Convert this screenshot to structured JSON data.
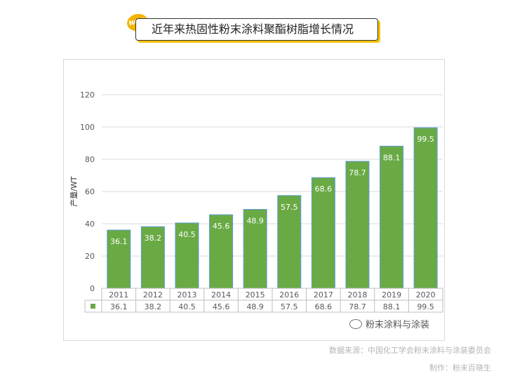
{
  "title": {
    "badge": "NO.3",
    "text": "近年来热固性粉末涂料聚酯树脂增长情况"
  },
  "chart_data": {
    "type": "bar",
    "ylabel": "产量/WT",
    "ylim": [
      0,
      120
    ],
    "yticks": [
      0,
      20,
      40,
      60,
      80,
      100,
      120
    ],
    "categories": [
      "2011",
      "2012",
      "2013",
      "2014",
      "2015",
      "2016",
      "2017",
      "2018",
      "2019",
      "2020"
    ],
    "values": [
      36.1,
      38.2,
      40.5,
      45.6,
      48.9,
      57.5,
      68.6,
      78.7,
      88.1,
      99.5
    ],
    "data_table": true,
    "grid": true,
    "bar_color": "#6aaa45",
    "legend": "none"
  },
  "watermark": "粉末涂料与涂装",
  "footer": {
    "source": "数据来源：中国化工学会粉末涂料与涂装委员会",
    "maker": "制作：粉末百晓生"
  }
}
